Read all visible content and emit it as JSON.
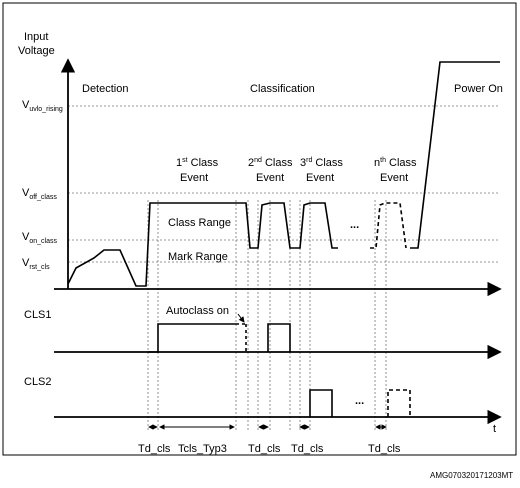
{
  "y_axis_label_line1": "Input",
  "y_axis_label_line2": "Voltage",
  "voltage_levels": {
    "v_uvlo": {
      "main": "V",
      "sub": "uvlo_rising"
    },
    "v_off": {
      "main": "V",
      "sub": "off_class"
    },
    "v_on": {
      "main": "V",
      "sub": "on_class"
    },
    "v_rst": {
      "main": "V",
      "sub": "rst_cls"
    }
  },
  "phases": {
    "detection": "Detection",
    "classification": "Classification",
    "power_on": "Power On"
  },
  "events": {
    "e1": {
      "num": "1",
      "sup": "st",
      "rest": " Class",
      "line2": "Event"
    },
    "e2": {
      "num": "2",
      "sup": "nd",
      "rest": " Class",
      "line2": "Event"
    },
    "e3": {
      "num": "3",
      "sup": "rd",
      "rest": " Class",
      "line2": "Event"
    },
    "en": {
      "num": "n",
      "sup": "th",
      "rest": " Class",
      "line2": "Event"
    }
  },
  "range_labels": {
    "class_range": "Class Range",
    "mark_range": "Mark Range"
  },
  "signals": {
    "cls1": "CLS1",
    "cls2": "CLS2",
    "autoclass": "Autoclass on"
  },
  "ellipsis": "...",
  "time_axis_label": "t",
  "timing_labels": {
    "td1": "Td_cls",
    "tcls": "Tcls_Typ3",
    "td2": "Td_cls",
    "td3": "Td_cls",
    "td4": "Td_cls"
  },
  "figure_id": "AMG070320171203MT"
}
